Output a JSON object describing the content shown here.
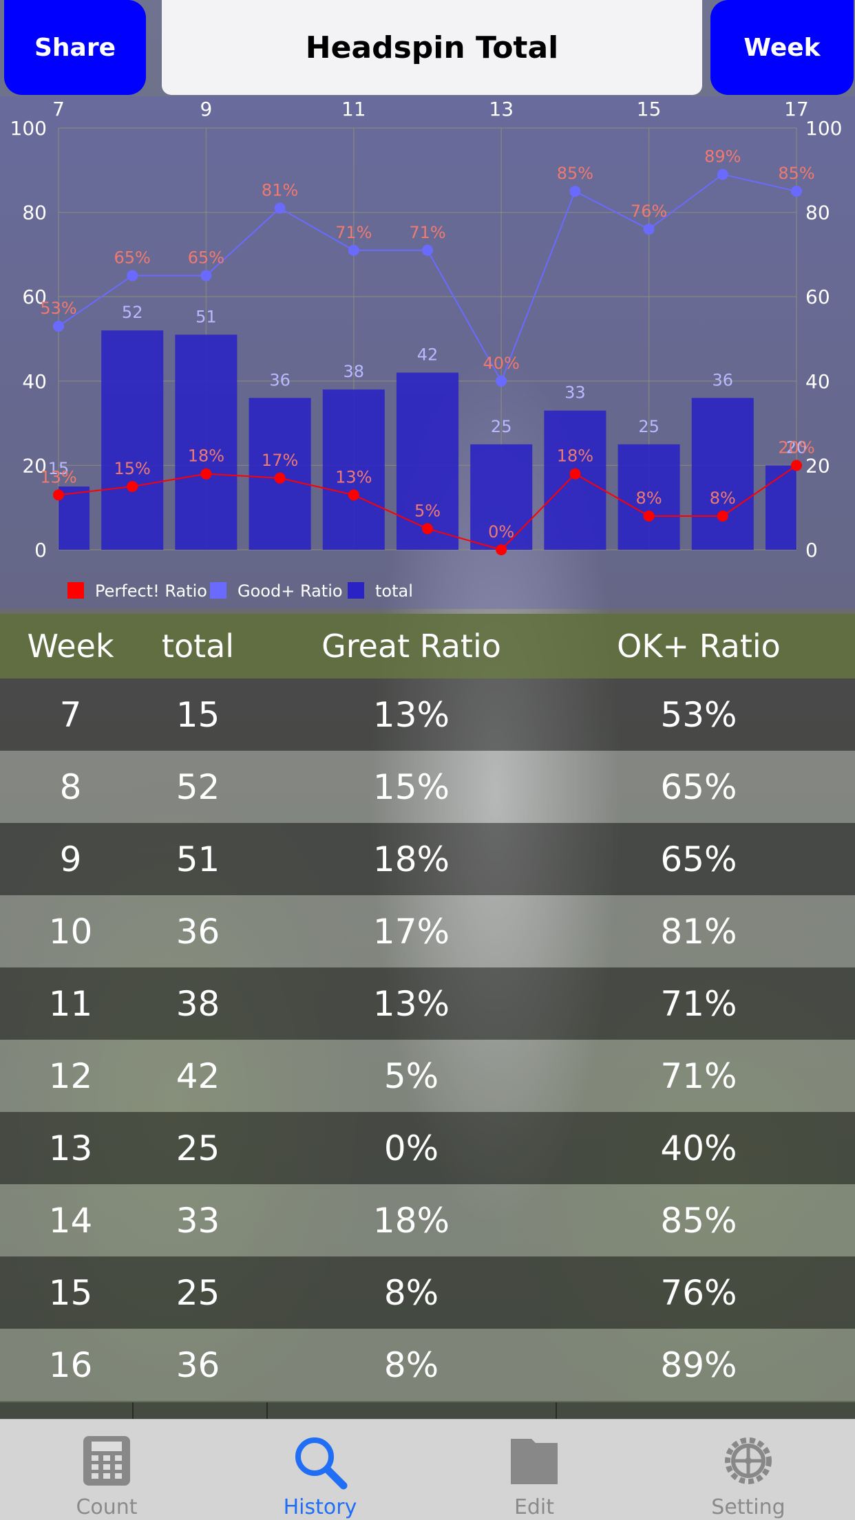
{
  "header": {
    "share_label": "Share",
    "title": "Headspin Total",
    "period_label": "Week"
  },
  "chart_data": {
    "type": "bar",
    "x": [
      7,
      8,
      9,
      10,
      11,
      12,
      13,
      14,
      15,
      16,
      17
    ],
    "x_tick_labels": [
      "7",
      "9",
      "11",
      "13",
      "15",
      "17"
    ],
    "y_tick_labels": [
      "0",
      "20",
      "40",
      "60",
      "80",
      "100"
    ],
    "ylim": [
      0,
      100
    ],
    "grid": true,
    "legend_position": "bottom-left",
    "series": [
      {
        "name": "Perfect! Ratio",
        "type": "line",
        "color": "#ff0000",
        "values": [
          13,
          15,
          18,
          17,
          13,
          5,
          0,
          18,
          8,
          8,
          20
        ],
        "labels": [
          "13%",
          "15%",
          "18%",
          "17%",
          "13%",
          "5%",
          "0%",
          "18%",
          "8%",
          "8%",
          "20%"
        ]
      },
      {
        "name": "Good+ Ratio",
        "type": "line",
        "color": "#6a6aff",
        "values": [
          53,
          65,
          65,
          81,
          71,
          71,
          40,
          85,
          76,
          89,
          85
        ],
        "labels": [
          "53%",
          "65%",
          "65%",
          "81%",
          "71%",
          "71%",
          "40%",
          "85%",
          "76%",
          "89%",
          "85%"
        ]
      },
      {
        "name": "total",
        "type": "bar",
        "color": "#2a22c4",
        "values": [
          15,
          52,
          51,
          36,
          38,
          42,
          25,
          33,
          25,
          36,
          20
        ],
        "labels": [
          "15",
          "52",
          "51",
          "36",
          "38",
          "42",
          "25",
          "33",
          "25",
          "36",
          "20"
        ]
      }
    ]
  },
  "table": {
    "headers": [
      "Week",
      "total",
      "Great Ratio",
      "OK+ Ratio"
    ],
    "rows": [
      [
        "7",
        "15",
        "13%",
        "53%"
      ],
      [
        "8",
        "52",
        "15%",
        "65%"
      ],
      [
        "9",
        "51",
        "18%",
        "65%"
      ],
      [
        "10",
        "36",
        "17%",
        "81%"
      ],
      [
        "11",
        "38",
        "13%",
        "71%"
      ],
      [
        "12",
        "42",
        "5%",
        "71%"
      ],
      [
        "13",
        "25",
        "0%",
        "40%"
      ],
      [
        "14",
        "33",
        "18%",
        "85%"
      ],
      [
        "15",
        "25",
        "8%",
        "76%"
      ],
      [
        "16",
        "36",
        "8%",
        "89%"
      ]
    ]
  },
  "tabbar": {
    "items": [
      {
        "label": "Count",
        "icon": "calculator-icon",
        "active": false
      },
      {
        "label": "History",
        "icon": "search-icon",
        "active": true
      },
      {
        "label": "Edit",
        "icon": "folder-icon",
        "active": false
      },
      {
        "label": "Setting",
        "icon": "gear-icon",
        "active": false
      }
    ],
    "active_color": "#1f6ef5",
    "inactive_color": "#8a8a8a"
  }
}
